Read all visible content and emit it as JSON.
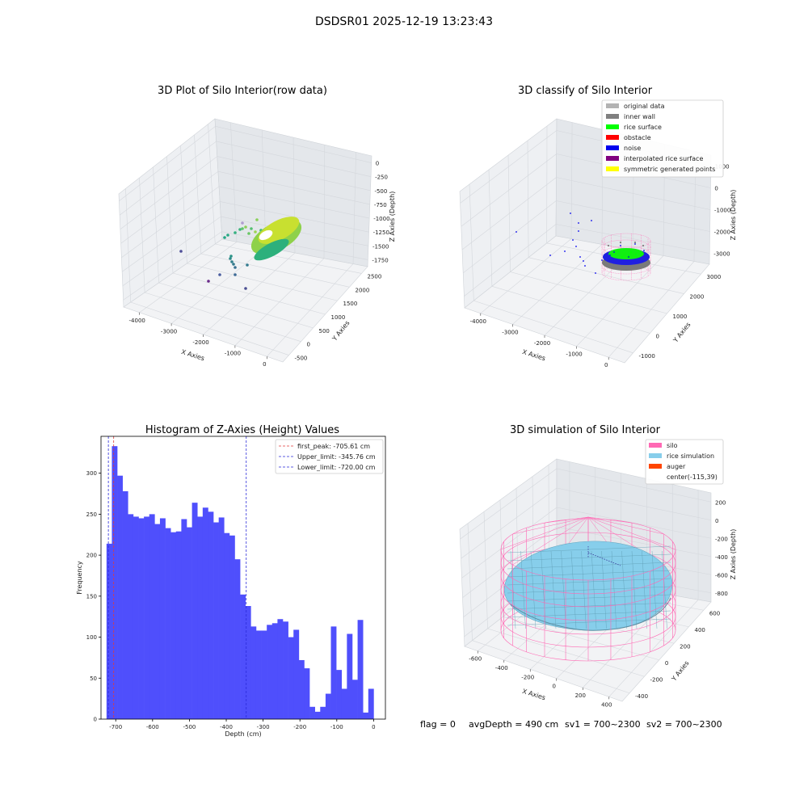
{
  "figure": {
    "suptitle": "DSDSR01 2025-12-19 13:23:43",
    "status_line": {
      "flag": "flag = 0",
      "avg_depth": "avgDepth = 490 cm",
      "sv1": "sv1 = 700~2300",
      "sv2": "sv2 = 700~2300"
    }
  },
  "colors": {
    "histogram_bar": "#4f4ffc",
    "first_peak_line": "#e03a3a",
    "limit_line": "#2a2ad8",
    "original_data": "#b3b3b3",
    "inner_wall": "#808080",
    "rice_surface": "#00ff00",
    "obstacle": "#ff0000",
    "noise": "#0000ee",
    "interpolated_rice_surface": "#800080",
    "symmetric_generated_points": "#ffff00",
    "silo": "#ff69b4",
    "rice_simulation": "#87ceeb",
    "auger": "#ff4500"
  },
  "chart_data": [
    {
      "id": "raw3d",
      "type": "scatter",
      "title": "3D Plot of Silo Interior(row data)",
      "xlabel": "X Axies",
      "ylabel": "Y Axies",
      "zlabel": "Z Axies (Depth)",
      "x_ticks": [
        "-4000",
        "-3000",
        "-2000",
        "-1000",
        "0"
      ],
      "y_ticks": [
        "-500",
        "0",
        "500",
        "1000",
        "1500",
        "2000",
        "2500"
      ],
      "z_ticks": [
        "0",
        "-250",
        "-500",
        "-750",
        "-1000",
        "-1250",
        "-1500",
        "-1750"
      ],
      "grid": true
    },
    {
      "id": "classify3d",
      "type": "scatter",
      "title": "3D classify of Silo Interior",
      "xlabel": "X Axies",
      "ylabel": "Y Axies",
      "zlabel": "Z Axies (Depth)",
      "x_ticks": [
        "-4000",
        "-3000",
        "-2000",
        "-1000",
        "0"
      ],
      "y_ticks": [
        "-1000",
        "0",
        "1000",
        "2000",
        "3000"
      ],
      "z_ticks": [
        "1000",
        "0",
        "-1000",
        "-2000",
        "-3000"
      ],
      "legend": [
        "original data",
        "inner wall",
        "rice surface",
        "obstacle",
        "noise",
        "interpolated rice surface",
        "symmetric generated points"
      ],
      "legend_position": "top-right",
      "grid": true
    },
    {
      "id": "histogram",
      "type": "bar",
      "title": "Histogram of Z-Axies (Height) Values",
      "xlabel": "Depth (cm)",
      "ylabel": "Frequency",
      "xlim": [
        -740,
        32
      ],
      "ylim": [
        0,
        345
      ],
      "x_ticks": [
        "-700",
        "-600",
        "-500",
        "-400",
        "-300",
        "-200",
        "-100",
        "0"
      ],
      "y_ticks": [
        "0",
        "50",
        "100",
        "150",
        "200",
        "250",
        "300"
      ],
      "bin_width": 14.5,
      "bin_starts": [
        -725,
        -710.5,
        -696,
        -681.5,
        -667,
        -652.5,
        -638,
        -623.5,
        -609,
        -594.5,
        -580,
        -565.5,
        -551,
        -536.5,
        -522,
        -507.5,
        -493,
        -478.5,
        -464,
        -449.5,
        -435,
        -420.5,
        -406,
        -391.5,
        -377,
        -362.5,
        -348,
        -333.5,
        -319,
        -304.5,
        -290,
        -275.5,
        -261,
        -246.5,
        -232,
        -217.5,
        -203,
        -188.5,
        -174,
        -159.5,
        -145,
        -130.5,
        -116,
        -101.5,
        -87,
        -72.5,
        -58,
        -43.5,
        -29,
        -14.5
      ],
      "values": [
        214,
        333,
        297,
        278,
        250,
        247,
        245,
        247,
        250,
        238,
        245,
        233,
        228,
        229,
        244,
        234,
        264,
        247,
        258,
        253,
        240,
        246,
        227,
        224,
        195,
        152,
        138,
        113,
        108,
        108,
        115,
        117,
        122,
        119,
        100,
        109,
        72,
        62,
        15,
        9,
        15,
        31,
        113,
        60,
        37,
        104,
        48,
        121,
        8,
        37
      ],
      "lines": [
        {
          "label": "first_peak: -705.61 cm",
          "x": -705.61,
          "style": "dashed",
          "color_key": "first_peak_line"
        },
        {
          "label": "Upper_limit: -345.76 cm",
          "x": -345.76,
          "style": "dashed",
          "color_key": "limit_line"
        },
        {
          "label": "Lower_limit: -720.00 cm",
          "x": -720.0,
          "style": "dashed",
          "color_key": "limit_line"
        }
      ],
      "legend_position": "top-right",
      "grid": false
    },
    {
      "id": "simulation3d",
      "type": "scatter",
      "title": "3D simulation of Silo Interior",
      "xlabel": "X Axies",
      "ylabel": "Y Axies",
      "zlabel": "Z Axies (Depth)",
      "x_ticks": [
        "-600",
        "-400",
        "-200",
        "0",
        "200",
        "400"
      ],
      "y_ticks": [
        "-400",
        "-200",
        "0",
        "200",
        "400",
        "600"
      ],
      "z_ticks": [
        "200",
        "0",
        "-200",
        "-400",
        "-600",
        "-800"
      ],
      "legend": [
        "silo",
        "rice simulation",
        "auger",
        "center(-115,39)"
      ],
      "legend_position": "top-right",
      "grid": true
    }
  ]
}
